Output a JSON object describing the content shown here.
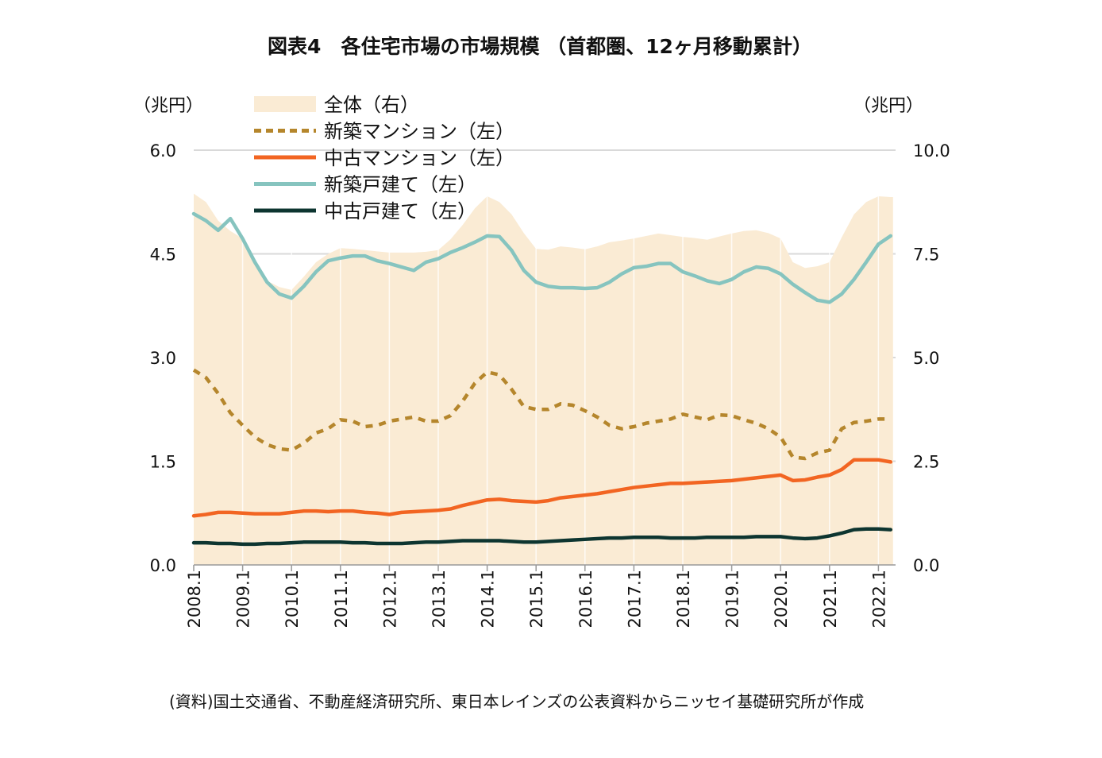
{
  "chart_data": {
    "type": "line",
    "title": "図表4　各住宅市場の市場規模 （首都圏、12ヶ月移動累計）",
    "ylabel_left": "（兆円）",
    "ylabel_right": "（兆円）",
    "ylim_left": [
      0,
      6.0
    ],
    "ylim_right": [
      0,
      10.0
    ],
    "yticks_left": [
      "0.0",
      "1.5",
      "3.0",
      "4.5",
      "6.0"
    ],
    "yticks_right": [
      "0.0",
      "2.5",
      "5.0",
      "7.5",
      "10.0"
    ],
    "xticks": [
      "2008.1",
      "2009.1",
      "2010.1",
      "2011.1",
      "2012.1",
      "2013.1",
      "2014.1",
      "2015.1",
      "2016.1",
      "2017.1",
      "2018.1",
      "2019.1",
      "2020.1",
      "2021.1",
      "2022.1"
    ],
    "grid": "horizontal",
    "legend_position": "top-left",
    "x": [
      "2008.1",
      "2008.4",
      "2008.7",
      "2008.10",
      "2009.1",
      "2009.4",
      "2009.7",
      "2009.10",
      "2010.1",
      "2010.4",
      "2010.7",
      "2010.10",
      "2011.1",
      "2011.4",
      "2011.7",
      "2011.10",
      "2012.1",
      "2012.4",
      "2012.7",
      "2012.10",
      "2013.1",
      "2013.4",
      "2013.7",
      "2013.10",
      "2014.1",
      "2014.4",
      "2014.7",
      "2014.10",
      "2015.1",
      "2015.4",
      "2015.7",
      "2015.10",
      "2016.1",
      "2016.4",
      "2016.7",
      "2016.10",
      "2017.1",
      "2017.4",
      "2017.7",
      "2017.10",
      "2018.1",
      "2018.4",
      "2018.7",
      "2018.10",
      "2019.1",
      "2019.4",
      "2019.7",
      "2019.10",
      "2020.1",
      "2020.4",
      "2020.7",
      "2020.10",
      "2021.1",
      "2021.4",
      "2021.7",
      "2021.10",
      "2022.1",
      "2022.4"
    ],
    "series": [
      {
        "name": "全体（右）",
        "axis": "right",
        "style": "area",
        "color": "#faebd4",
        "values": [
          8.95,
          8.75,
          8.3,
          8.05,
          7.87,
          7.35,
          6.85,
          6.7,
          6.63,
          6.95,
          7.3,
          7.5,
          7.64,
          7.62,
          7.59,
          7.56,
          7.53,
          7.53,
          7.53,
          7.55,
          7.59,
          7.85,
          8.2,
          8.6,
          8.89,
          8.75,
          8.45,
          8.0,
          7.62,
          7.6,
          7.68,
          7.65,
          7.61,
          7.68,
          7.78,
          7.82,
          7.87,
          7.93,
          7.99,
          7.95,
          7.91,
          7.88,
          7.84,
          7.92,
          7.99,
          8.05,
          8.07,
          8.0,
          7.87,
          7.3,
          7.16,
          7.2,
          7.3,
          7.9,
          8.45,
          8.75,
          8.89,
          8.87
        ]
      },
      {
        "name": "新築マンション（左）",
        "axis": "left",
        "style": "dashed",
        "color": "#b5862c",
        "values": [
          2.82,
          2.71,
          2.48,
          2.2,
          2.02,
          1.85,
          1.74,
          1.68,
          1.66,
          1.76,
          1.91,
          1.97,
          2.1,
          2.08,
          2.0,
          2.02,
          2.08,
          2.11,
          2.14,
          2.08,
          2.08,
          2.16,
          2.37,
          2.63,
          2.79,
          2.75,
          2.54,
          2.29,
          2.25,
          2.25,
          2.33,
          2.31,
          2.23,
          2.14,
          2.02,
          1.97,
          2.0,
          2.05,
          2.08,
          2.11,
          2.18,
          2.14,
          2.1,
          2.17,
          2.16,
          2.1,
          2.05,
          1.97,
          1.85,
          1.56,
          1.54,
          1.62,
          1.66,
          1.97,
          2.06,
          2.08,
          2.11,
          2.11
        ]
      },
      {
        "name": "中古マンション（左）",
        "axis": "left",
        "style": "solid",
        "color": "#f26522",
        "values": [
          0.71,
          0.73,
          0.76,
          0.76,
          0.75,
          0.74,
          0.74,
          0.74,
          0.76,
          0.78,
          0.78,
          0.77,
          0.78,
          0.78,
          0.76,
          0.75,
          0.73,
          0.76,
          0.77,
          0.78,
          0.79,
          0.81,
          0.86,
          0.9,
          0.94,
          0.95,
          0.93,
          0.92,
          0.91,
          0.93,
          0.97,
          0.99,
          1.01,
          1.03,
          1.06,
          1.09,
          1.12,
          1.14,
          1.16,
          1.18,
          1.18,
          1.19,
          1.2,
          1.21,
          1.22,
          1.24,
          1.26,
          1.28,
          1.3,
          1.22,
          1.23,
          1.27,
          1.3,
          1.38,
          1.52,
          1.52,
          1.52,
          1.49
        ]
      },
      {
        "name": "新築戸建て（左）",
        "axis": "left",
        "style": "solid",
        "color": "#86c4bf",
        "values": [
          5.08,
          4.98,
          4.84,
          5.01,
          4.72,
          4.38,
          4.09,
          3.92,
          3.86,
          4.03,
          4.24,
          4.4,
          4.44,
          4.47,
          4.47,
          4.4,
          4.36,
          4.31,
          4.26,
          4.38,
          4.43,
          4.52,
          4.59,
          4.67,
          4.76,
          4.75,
          4.55,
          4.26,
          4.09,
          4.03,
          4.01,
          4.01,
          4.0,
          4.01,
          4.09,
          4.21,
          4.3,
          4.32,
          4.36,
          4.36,
          4.24,
          4.18,
          4.11,
          4.07,
          4.13,
          4.24,
          4.31,
          4.29,
          4.21,
          4.06,
          3.94,
          3.83,
          3.8,
          3.92,
          4.13,
          4.38,
          4.64,
          4.76
        ]
      },
      {
        "name": "中古戸建て（左）",
        "axis": "left",
        "style": "solid",
        "color": "#0d3530",
        "values": [
          0.32,
          0.32,
          0.31,
          0.31,
          0.3,
          0.3,
          0.31,
          0.31,
          0.32,
          0.33,
          0.33,
          0.33,
          0.33,
          0.32,
          0.32,
          0.31,
          0.31,
          0.31,
          0.32,
          0.33,
          0.33,
          0.34,
          0.35,
          0.35,
          0.35,
          0.35,
          0.34,
          0.33,
          0.33,
          0.34,
          0.35,
          0.36,
          0.37,
          0.38,
          0.39,
          0.39,
          0.4,
          0.4,
          0.4,
          0.39,
          0.39,
          0.39,
          0.4,
          0.4,
          0.4,
          0.4,
          0.41,
          0.41,
          0.41,
          0.39,
          0.38,
          0.39,
          0.42,
          0.46,
          0.51,
          0.52,
          0.52,
          0.51
        ]
      }
    ],
    "source": "(資料)国土交通省、不動産経済研究所、東日本レインズの公表資料からニッセイ基礎研究所が作成"
  }
}
